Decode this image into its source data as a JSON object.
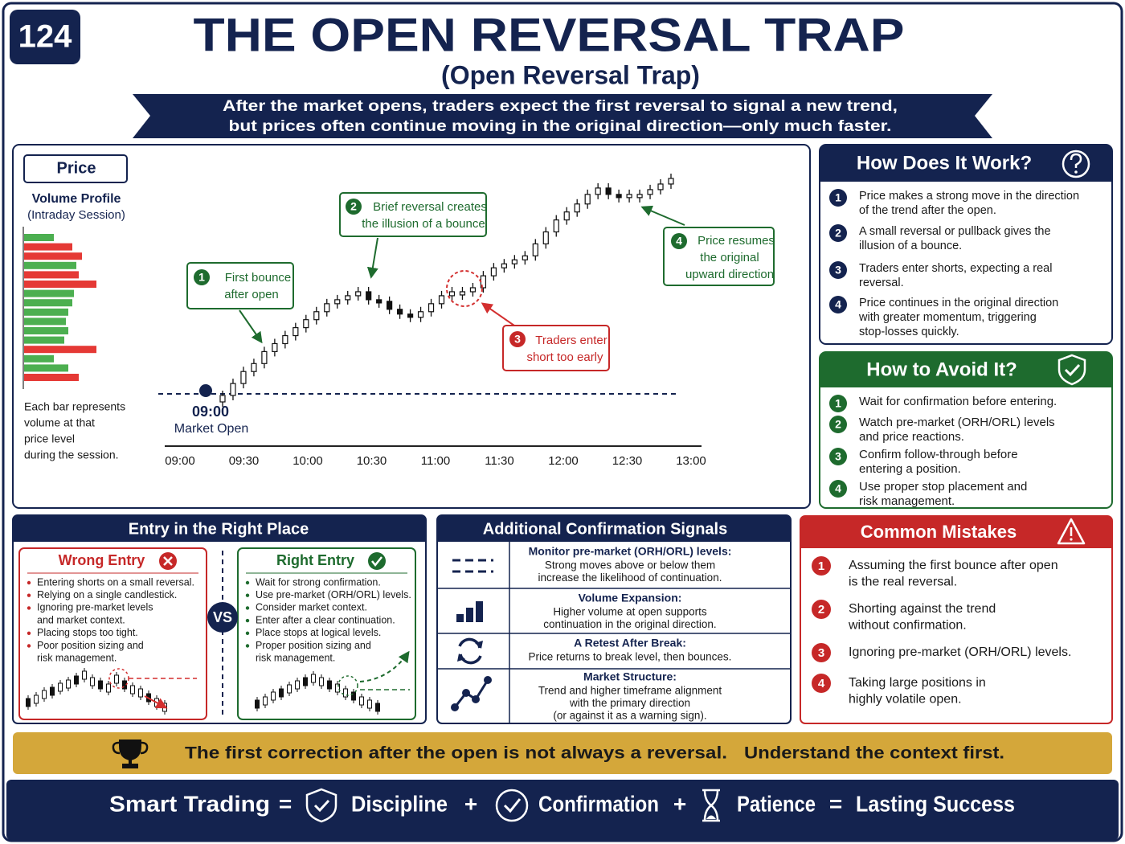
{
  "badge": "124",
  "title": "THE OPEN REVERSAL TRAP",
  "subtitle": "(Open Reversal Trap)",
  "banner": [
    "After the market opens, traders expect the first reversal to signal a new trend,",
    "but prices often continue moving in the original direction—only much faster."
  ],
  "price_chart": {
    "type": "candlestick",
    "title": "Price",
    "volume_profile_title": "Volume Profile",
    "volume_profile_subtitle": "(Intraday Session)",
    "volume_profile_note": [
      "Each bar represents",
      "volume at that",
      "price level",
      "during the session."
    ],
    "volume_profile": {
      "values": [
        37,
        60,
        72,
        65,
        68,
        90,
        62,
        60,
        55,
        52,
        55,
        50,
        90,
        37,
        55,
        68
      ],
      "colors": [
        "#4caf50",
        "#e53935",
        "#e53935",
        "#4caf50",
        "#e53935",
        "#e53935",
        "#4caf50",
        "#4caf50",
        "#4caf50",
        "#4caf50",
        "#4caf50",
        "#4caf50",
        "#e53935",
        "#4caf50",
        "#4caf50",
        "#e53935"
      ]
    },
    "categories": [
      "09:00",
      "09:30",
      "10:00",
      "10:30",
      "11:00",
      "11:30",
      "12:00",
      "12:30",
      "13:00"
    ],
    "prices": [
      10,
      25,
      40,
      50,
      65,
      75,
      85,
      95,
      105,
      115,
      125,
      130,
      135,
      140,
      130,
      128,
      118,
      112,
      108,
      115,
      125,
      135,
      140,
      140,
      145,
      160,
      170,
      175,
      180,
      185,
      200,
      215,
      230,
      240,
      250,
      262,
      270,
      262,
      258,
      262,
      262,
      268,
      275,
      282
    ],
    "market_open_time": "09:00",
    "market_open_label": "Market Open",
    "callouts": [
      {
        "number": "1",
        "lines": [
          "First bounce",
          "after open"
        ]
      },
      {
        "number": "2",
        "lines": [
          "Brief reversal creates",
          "the illusion of a bounce"
        ]
      },
      {
        "number": "3",
        "lines": [
          "Traders enter",
          "short too early"
        ]
      },
      {
        "number": "4",
        "lines": [
          "Price resumes",
          "the original",
          "upward direction"
        ]
      }
    ]
  },
  "how_it_works": {
    "title": "How Does It Work?",
    "items": [
      {
        "number": "1",
        "lines": [
          "Price makes a strong move in the direction",
          "of the trend after the open."
        ]
      },
      {
        "number": "2",
        "lines": [
          "A small reversal or pullback gives the",
          "illusion of a bounce."
        ]
      },
      {
        "number": "3",
        "lines": [
          "Traders enter shorts, expecting a real",
          "reversal."
        ]
      },
      {
        "number": "4",
        "lines": [
          "Price continues in the original direction",
          "with greater momentum, triggering",
          "stop-losses quickly."
        ]
      }
    ]
  },
  "how_to_avoid": {
    "title": "How to Avoid It?",
    "items": [
      {
        "number": "1",
        "lines": [
          "Wait for confirmation before entering."
        ]
      },
      {
        "number": "2",
        "lines": [
          "Watch pre-market (ORH/ORL) levels",
          "and price reactions."
        ]
      },
      {
        "number": "3",
        "lines": [
          "Confirm follow-through before",
          "entering a position."
        ]
      },
      {
        "number": "4",
        "lines": [
          "Use proper stop placement and",
          "risk management."
        ]
      }
    ]
  },
  "entry": {
    "title": "Entry in the Right Place",
    "vs": "VS",
    "wrong": {
      "title": "Wrong Entry",
      "items": [
        [
          "Entering shorts on a small reversal."
        ],
        [
          "Relying on a single candlestick."
        ],
        [
          "Ignoring pre-market levels",
          "and market context."
        ],
        [
          "Placing stops too tight."
        ],
        [
          "Poor position sizing and",
          "risk management."
        ]
      ]
    },
    "right": {
      "title": "Right Entry",
      "items": [
        [
          "Wait for strong confirmation."
        ],
        [
          "Use pre-market (ORH/ORL) levels."
        ],
        [
          "Consider market context."
        ],
        [
          "Enter after a clear continuation."
        ],
        [
          "Place stops at logical levels."
        ],
        [
          "Proper position sizing and",
          "risk management."
        ]
      ]
    }
  },
  "signals": {
    "title": "Additional Confirmation Signals",
    "items": [
      {
        "title": "Monitor pre-market (ORH/ORL) levels:",
        "lines": [
          "Strong moves above or below them",
          "increase the likelihood of continuation."
        ]
      },
      {
        "title": "Volume Expansion:",
        "lines": [
          "Higher volume at open supports",
          "continuation in the original direction."
        ]
      },
      {
        "title": "A Retest After Break:",
        "lines": [
          "Price returns to break level, then bounces."
        ]
      },
      {
        "title": "Market Structure:",
        "lines": [
          "Trend and higher timeframe alignment",
          "with the primary direction",
          "(or against it as a warning sign)."
        ]
      }
    ]
  },
  "mistakes": {
    "title": "Common Mistakes",
    "items": [
      {
        "number": "1",
        "lines": [
          "Assuming the first bounce after open",
          "is the real reversal."
        ]
      },
      {
        "number": "2",
        "lines": [
          "Shorting against the trend",
          "without confirmation."
        ]
      },
      {
        "number": "3",
        "lines": [
          "Ignoring pre-market (ORH/ORL) levels."
        ]
      },
      {
        "number": "4",
        "lines": [
          "Taking large positions in",
          "highly volatile open."
        ]
      }
    ]
  },
  "takeaway": [
    "The first correction after the open is not always a reversal.",
    "Understand the context first."
  ],
  "footer": [
    "Smart Trading",
    "=",
    "Discipline",
    "+",
    "Confirmation",
    "+",
    "Patience",
    "=",
    "Lasting Success"
  ]
}
